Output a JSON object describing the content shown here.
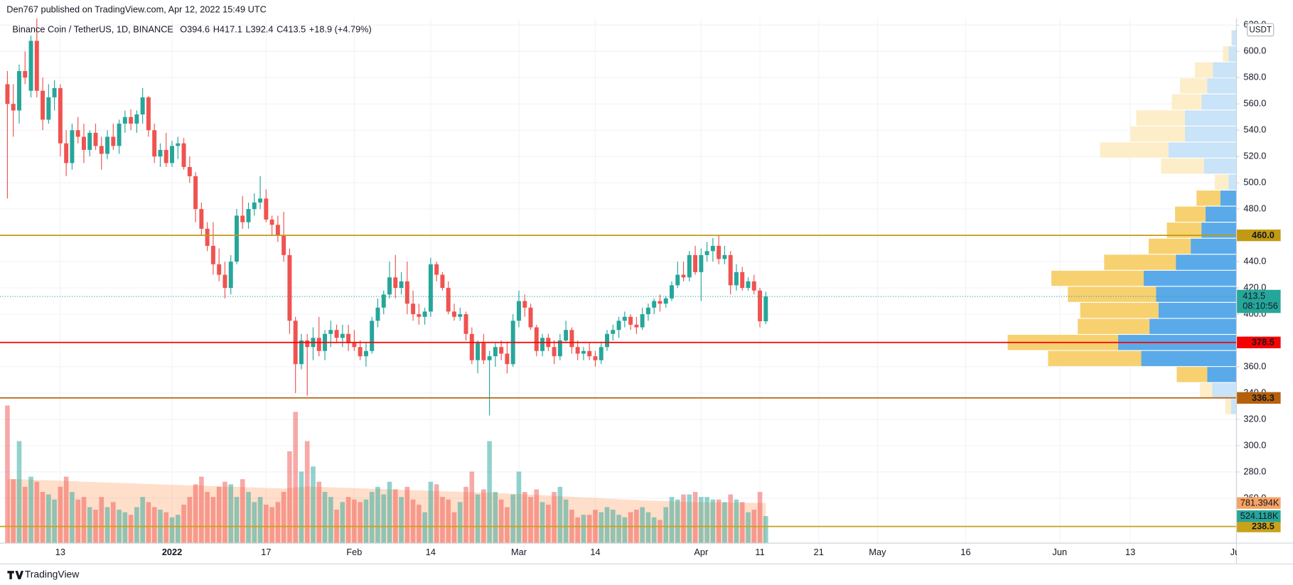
{
  "header": "Den767 published on TradingView.com, Apr 12, 2022 15:49 UTC",
  "footer": "TradingView",
  "chart_data": {
    "type": "candlestick",
    "legend": {
      "symbol": "Binance Coin / TetherUS, 1D, BINANCE",
      "items": [
        {
          "key": "O",
          "value": "394.6"
        },
        {
          "key": "H",
          "value": "417.1"
        },
        {
          "key": "L",
          "value": "392.4"
        },
        {
          "key": "C",
          "value": "413.5"
        }
      ],
      "change": "+18.9 (+4.79%)"
    },
    "currency": "USDT",
    "up_color": "#26a69a",
    "down_color": "#ef5350",
    "xlim": [
      0,
      209
    ],
    "xticks": [
      {
        "value": 9,
        "label": "13"
      },
      {
        "value": 28,
        "label": "2022",
        "bold": true
      },
      {
        "value": 44,
        "label": "17"
      },
      {
        "value": 59,
        "label": "Feb"
      },
      {
        "value": 72,
        "label": "14"
      },
      {
        "value": 87,
        "label": "Mar"
      },
      {
        "value": 100,
        "label": "14"
      },
      {
        "value": 118,
        "label": "Apr"
      },
      {
        "value": 128,
        "label": "11"
      },
      {
        "value": 138,
        "label": "21"
      },
      {
        "value": 148,
        "label": "May"
      },
      {
        "value": 163,
        "label": "16"
      },
      {
        "value": 179,
        "label": "Jun"
      },
      {
        "value": 191,
        "label": "13"
      },
      {
        "value": 209,
        "label": "Jul"
      }
    ],
    "ylim": [
      226.1,
      625.2
    ],
    "yticks": [
      {
        "value": 620,
        "label": "620.0"
      },
      {
        "value": 600,
        "label": "600.0"
      },
      {
        "value": 580,
        "label": "580.0"
      },
      {
        "value": 560,
        "label": "560.0"
      },
      {
        "value": 540,
        "label": "540.0"
      },
      {
        "value": 520,
        "label": "520.0"
      },
      {
        "value": 500,
        "label": "500.0"
      },
      {
        "value": 480,
        "label": "480.0"
      },
      {
        "value": 460,
        "label": "460.0"
      },
      {
        "value": 440,
        "label": "440.0"
      },
      {
        "value": 420,
        "label": "420.0"
      },
      {
        "value": 400,
        "label": "400.0"
      },
      {
        "value": 380,
        "label": "380.0"
      },
      {
        "value": 360,
        "label": "360.0"
      },
      {
        "value": 340,
        "label": "340.0"
      },
      {
        "value": 320,
        "label": "320.0"
      },
      {
        "value": 300,
        "label": "300.0"
      },
      {
        "value": 280,
        "label": "280.0"
      },
      {
        "value": 260,
        "label": "260.0"
      }
    ],
    "grid": true,
    "ohlc": [
      [
        575,
        585,
        488,
        560
      ],
      [
        560,
        575,
        535,
        555
      ],
      [
        555,
        590,
        545,
        585
      ],
      [
        585,
        600,
        575,
        580
      ],
      [
        570,
        612,
        565,
        608
      ],
      [
        608,
        625,
        565,
        570
      ],
      [
        570,
        580,
        540,
        548
      ],
      [
        548,
        575,
        545,
        565
      ],
      [
        565,
        578,
        555,
        572
      ],
      [
        572,
        575,
        520,
        530
      ],
      [
        530,
        540,
        505,
        515
      ],
      [
        515,
        545,
        510,
        540
      ],
      [
        540,
        550,
        530,
        535
      ],
      [
        535,
        545,
        515,
        525
      ],
      [
        525,
        540,
        520,
        538
      ],
      [
        538,
        545,
        525,
        528
      ],
      [
        528,
        535,
        510,
        522
      ],
      [
        522,
        540,
        518,
        535
      ],
      [
        535,
        545,
        525,
        528
      ],
      [
        528,
        548,
        522,
        545
      ],
      [
        545,
        555,
        538,
        550
      ],
      [
        550,
        556,
        540,
        545
      ],
      [
        545,
        555,
        538,
        552
      ],
      [
        552,
        572,
        545,
        565
      ],
      [
        565,
        566,
        535,
        540
      ],
      [
        540,
        545,
        515,
        520
      ],
      [
        520,
        530,
        512,
        525
      ],
      [
        525,
        538,
        512,
        515
      ],
      [
        515,
        532,
        512,
        528
      ],
      [
        528,
        535,
        518,
        530
      ],
      [
        530,
        534,
        510,
        512
      ],
      [
        512,
        520,
        500,
        505
      ],
      [
        505,
        508,
        470,
        480
      ],
      [
        480,
        485,
        460,
        465
      ],
      [
        465,
        470,
        448,
        452
      ],
      [
        452,
        470,
        430,
        438
      ],
      [
        438,
        450,
        425,
        430
      ],
      [
        430,
        440,
        412,
        420
      ],
      [
        420,
        445,
        415,
        440
      ],
      [
        440,
        480,
        438,
        475
      ],
      [
        475,
        490,
        465,
        470
      ],
      [
        470,
        485,
        465,
        480
      ],
      [
        480,
        492,
        475,
        485
      ],
      [
        485,
        505,
        480,
        488
      ],
      [
        488,
        495,
        470,
        472
      ],
      [
        472,
        475,
        460,
        468
      ],
      [
        468,
        475,
        455,
        460
      ],
      [
        460,
        478,
        440,
        445
      ],
      [
        445,
        450,
        385,
        395
      ],
      [
        395,
        398,
        340,
        362
      ],
      [
        362,
        385,
        358,
        380
      ],
      [
        380,
        385,
        338,
        375
      ],
      [
        375,
        390,
        365,
        382
      ],
      [
        382,
        398,
        368,
        372
      ],
      [
        372,
        388,
        365,
        385
      ],
      [
        385,
        395,
        375,
        388
      ],
      [
        388,
        392,
        378,
        382
      ],
      [
        382,
        392,
        375,
        385
      ],
      [
        385,
        392,
        372,
        378
      ],
      [
        378,
        388,
        372,
        375
      ],
      [
        375,
        380,
        365,
        368
      ],
      [
        368,
        378,
        360,
        372
      ],
      [
        372,
        398,
        370,
        395
      ],
      [
        395,
        412,
        390,
        405
      ],
      [
        405,
        418,
        400,
        415
      ],
      [
        415,
        440,
        412,
        428
      ],
      [
        428,
        445,
        412,
        420
      ],
      [
        420,
        432,
        415,
        425
      ],
      [
        425,
        440,
        400,
        408
      ],
      [
        408,
        418,
        395,
        400
      ],
      [
        400,
        408,
        392,
        398
      ],
      [
        398,
        405,
        392,
        402
      ],
      [
        402,
        443,
        398,
        438
      ],
      [
        438,
        440,
        425,
        430
      ],
      [
        430,
        432,
        418,
        420
      ],
      [
        420,
        425,
        400,
        402
      ],
      [
        402,
        408,
        395,
        398
      ],
      [
        398,
        405,
        395,
        400
      ],
      [
        400,
        402,
        380,
        385
      ],
      [
        385,
        390,
        362,
        365
      ],
      [
        365,
        380,
        355,
        378
      ],
      [
        378,
        385,
        362,
        365
      ],
      [
        365,
        372,
        323,
        368
      ],
      [
        368,
        378,
        360,
        375
      ],
      [
        375,
        380,
        365,
        370
      ],
      [
        370,
        378,
        355,
        362
      ],
      [
        362,
        400,
        360,
        395
      ],
      [
        395,
        418,
        390,
        410
      ],
      [
        410,
        415,
        398,
        405
      ],
      [
        405,
        408,
        388,
        390
      ],
      [
        390,
        392,
        368,
        372
      ],
      [
        372,
        385,
        368,
        382
      ],
      [
        382,
        385,
        372,
        375
      ],
      [
        375,
        380,
        362,
        368
      ],
      [
        368,
        385,
        365,
        380
      ],
      [
        380,
        395,
        378,
        388
      ],
      [
        388,
        390,
        370,
        375
      ],
      [
        375,
        380,
        365,
        370
      ],
      [
        370,
        375,
        365,
        372
      ],
      [
        372,
        378,
        365,
        368
      ],
      [
        368,
        372,
        360,
        365
      ],
      [
        365,
        378,
        362,
        375
      ],
      [
        375,
        388,
        372,
        385
      ],
      [
        385,
        392,
        380,
        388
      ],
      [
        388,
        398,
        382,
        395
      ],
      [
        395,
        402,
        390,
        398
      ],
      [
        398,
        400,
        388,
        392
      ],
      [
        392,
        398,
        385,
        390
      ],
      [
        390,
        405,
        388,
        400
      ],
      [
        400,
        408,
        395,
        405
      ],
      [
        405,
        412,
        400,
        410
      ],
      [
        410,
        415,
        402,
        408
      ],
      [
        408,
        414,
        405,
        412
      ],
      [
        412,
        425,
        410,
        422
      ],
      [
        422,
        440,
        420,
        430
      ],
      [
        430,
        440,
        425,
        428
      ],
      [
        428,
        448,
        425,
        445
      ],
      [
        445,
        452,
        430,
        432
      ],
      [
        432,
        450,
        410,
        445
      ],
      [
        445,
        455,
        440,
        448
      ],
      [
        448,
        458,
        440,
        452
      ],
      [
        452,
        460,
        438,
        442
      ],
      [
        442,
        452,
        438,
        445
      ],
      [
        445,
        448,
        415,
        422
      ],
      [
        422,
        438,
        418,
        432
      ],
      [
        432,
        436,
        418,
        420
      ],
      [
        420,
        428,
        418,
        425
      ],
      [
        425,
        430,
        415,
        418
      ],
      [
        418,
        420,
        390,
        394.6
      ],
      [
        394.6,
        417.1,
        392.4,
        413.5
      ]
    ],
    "vlim": [
      0,
      2608000
    ],
    "volume": [
      2700000,
      1250000,
      2000000,
      1100000,
      1300000,
      1200000,
      1000000,
      950000,
      850000,
      1100000,
      1300000,
      1000000,
      850000,
      900000,
      700000,
      650000,
      900000,
      700000,
      800000,
      650000,
      600000,
      550000,
      700000,
      900000,
      800000,
      700000,
      650000,
      600000,
      500000,
      550000,
      750000,
      900000,
      1150000,
      1300000,
      1000000,
      900000,
      1100000,
      1200000,
      1150000,
      900000,
      1250000,
      1000000,
      800000,
      900000,
      750000,
      700000,
      800000,
      1000000,
      1800000,
      2575000,
      1400000,
      2000000,
      1500000,
      1200000,
      1000000,
      900000,
      650000,
      800000,
      900000,
      850000,
      800000,
      850000,
      1000000,
      1100000,
      950000,
      1200000,
      1050000,
      900000,
      1100000,
      850000,
      750000,
      600000,
      1200000,
      1150000,
      900000,
      850000,
      600000,
      800000,
      1100000,
      1400000,
      950000,
      1050000,
      2000000,
      1000000,
      850000,
      700000,
      950000,
      1400000,
      1000000,
      900000,
      1050000,
      800000,
      750000,
      1000000,
      1100000,
      850000,
      650000,
      500000,
      550000,
      550000,
      650000,
      600000,
      700000,
      650000,
      550000,
      500000,
      600000,
      650000,
      700000,
      600000,
      500000,
      450000,
      700000,
      900000,
      850000,
      950000,
      950000,
      1000000,
      900000,
      900000,
      850000,
      850000,
      800000,
      950000,
      850000,
      800000,
      600000,
      650000,
      1000000,
      524118
    ],
    "volume_ma": [
      1255000,
      1250000,
      1248000,
      1245000,
      1240000,
      1236000,
      1232000,
      1228000,
      1224000,
      1220000,
      1215000,
      1210000,
      1205000,
      1200000,
      1196000,
      1192000,
      1188000,
      1184000,
      1180000,
      1176000,
      1172000,
      1168000,
      1164000,
      1160000,
      1156000,
      1152000,
      1148000,
      1144000,
      1140000,
      1136000,
      1132000,
      1128000,
      1125000,
      1122000,
      1118000,
      1114000,
      1110000,
      1106000,
      1102000,
      1098000,
      1094000,
      1090000,
      1086000,
      1082000,
      1078000,
      1074000,
      1070000,
      1066000,
      1075000,
      1090000,
      1095000,
      1105000,
      1102000,
      1098000,
      1094000,
      1090000,
      1086000,
      1082000,
      1078000,
      1074000,
      1070000,
      1066000,
      1062000,
      1058000,
      1054000,
      1050000,
      1046000,
      1042000,
      1038000,
      1034000,
      1030000,
      1026000,
      1022000,
      1018000,
      1014000,
      1010000,
      1006000,
      1002000,
      998000,
      994000,
      990000,
      986000,
      990000,
      982000,
      975000,
      968000,
      962000,
      958000,
      952000,
      946000,
      940000,
      934000,
      928000,
      922000,
      916000,
      910000,
      904000,
      898000,
      892000,
      886000,
      880000,
      874000,
      868000,
      862000,
      856000,
      850000,
      845000,
      840000,
      835000,
      830000,
      826000,
      822000,
      818000,
      814000,
      810000,
      806000,
      803000,
      800000,
      798000,
      796000,
      794000,
      792000,
      790000,
      789000,
      788000,
      787000,
      786000,
      785000,
      783000,
      781394
    ],
    "volume_ma_label": "781.394K",
    "volume_label": "524.118K",
    "last_price": {
      "value": 413.5,
      "countdown": "08:10:56"
    },
    "levels": [
      {
        "value": 460.0,
        "label": "460.0",
        "color": "#c29a12"
      },
      {
        "value": 378.5,
        "label": "378.5",
        "color": "#f70000"
      },
      {
        "value": 336.3,
        "label": "336.3",
        "color": "#b5600d"
      },
      {
        "value": 238.5,
        "label": "238.5",
        "color": "#c9a21a"
      }
    ],
    "profile_xlim": [
      0,
      280
    ],
    "profile_edges": [
      616.4,
      604.2,
      592.0,
      579.8,
      567.6,
      555.4,
      543.2,
      531.0,
      518.8,
      506.6,
      494.4,
      482.2,
      470.0,
      457.8,
      445.6,
      433.4,
      421.2,
      409.0,
      396.8,
      384.6,
      372.4,
      360.2,
      348.0,
      335.8,
      323.6
    ],
    "profile_up": [
      5,
      9,
      28,
      35,
      42,
      62,
      62,
      82,
      39,
      9,
      19,
      37,
      42,
      55,
      73,
      112,
      97,
      94,
      105,
      143,
      115,
      35,
      29,
      6
    ],
    "profile_down": [
      1,
      7,
      22,
      33,
      36,
      59,
      66,
      83,
      52,
      17,
      29,
      37,
      42,
      51,
      87,
      112,
      107,
      95,
      87,
      134,
      113,
      37,
      15,
      7
    ],
    "profile_value_area": [
      false,
      false,
      false,
      false,
      false,
      false,
      false,
      false,
      false,
      false,
      true,
      true,
      true,
      true,
      true,
      true,
      true,
      true,
      true,
      true,
      true,
      true,
      false,
      false
    ]
  }
}
